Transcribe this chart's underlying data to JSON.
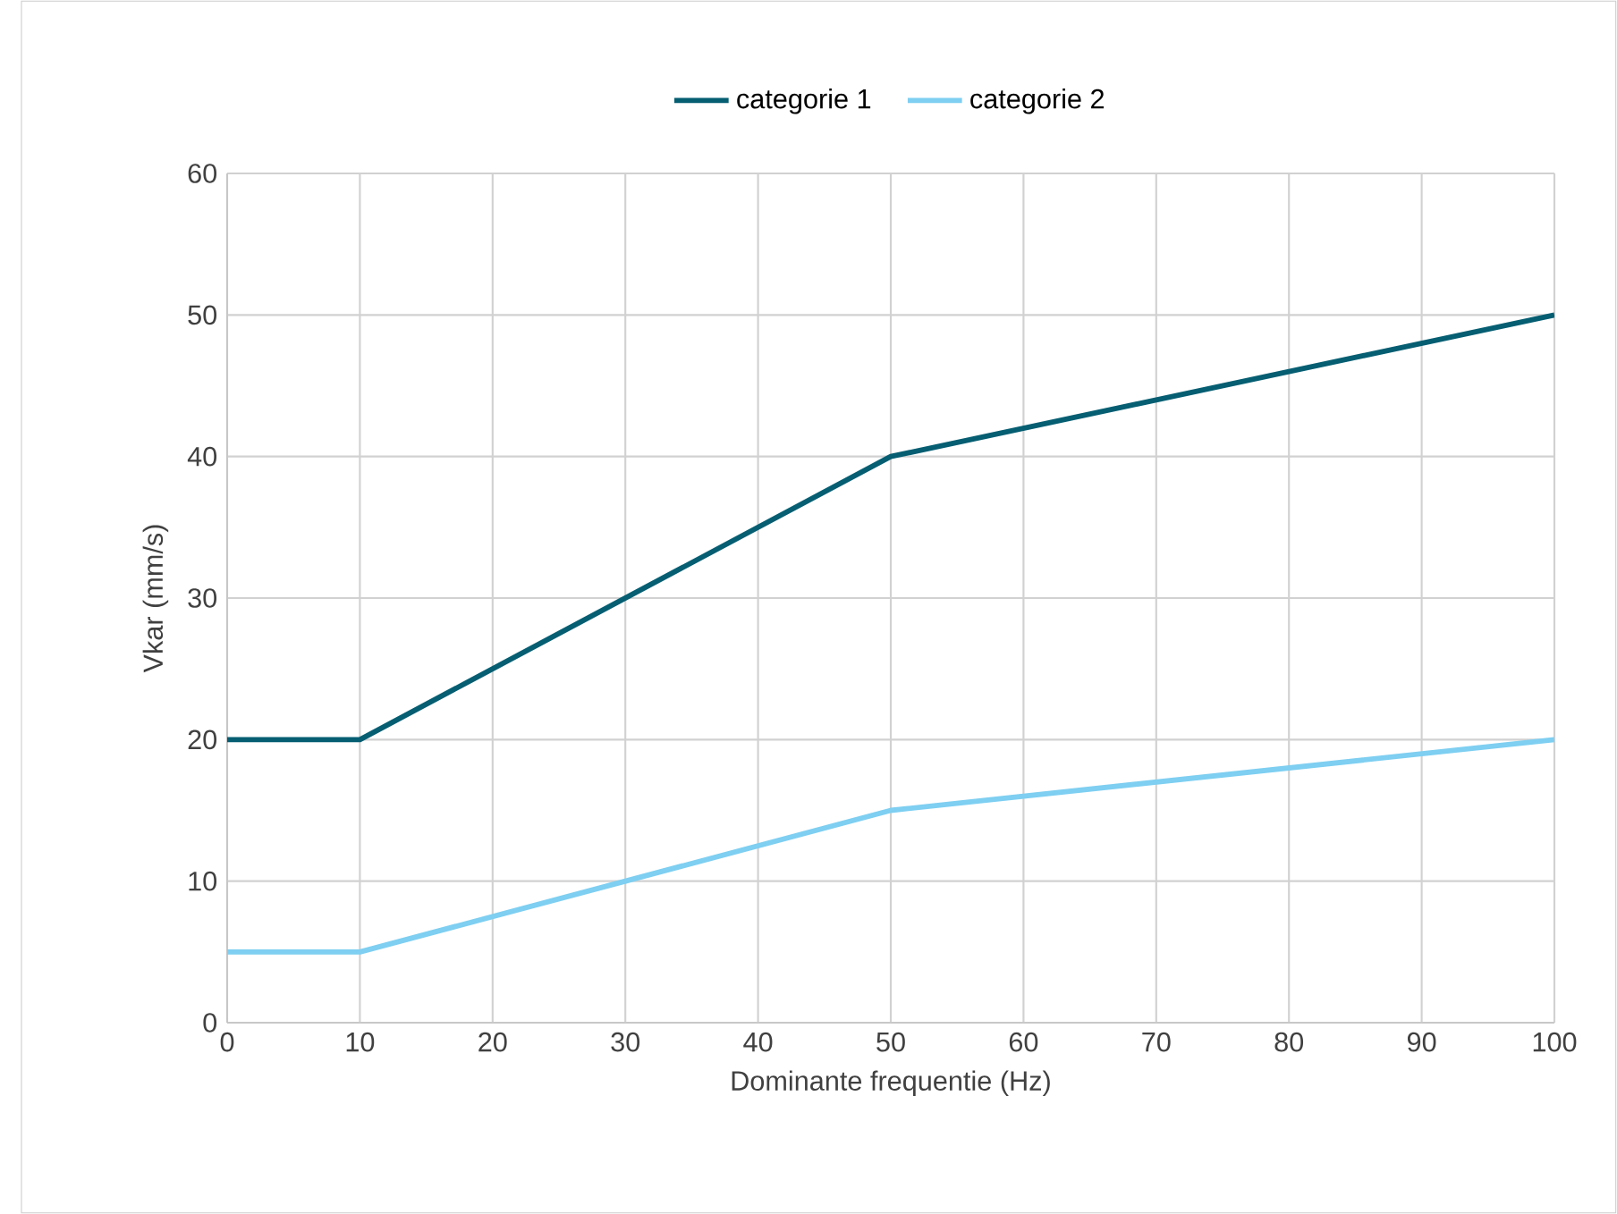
{
  "chart_data": {
    "type": "line",
    "xlabel": "Dominante frequentie (Hz)",
    "ylabel": "Vkar (mm/s)",
    "xlim": [
      0,
      100
    ],
    "ylim": [
      0,
      60
    ],
    "xticks": [
      0,
      10,
      20,
      30,
      40,
      50,
      60,
      70,
      80,
      90,
      100
    ],
    "yticks": [
      0,
      10,
      20,
      30,
      40,
      50,
      60
    ],
    "grid": true,
    "legend": "top",
    "marker": "none",
    "line_style": "solid",
    "series": [
      {
        "name": "categorie 1",
        "color": "#055e72",
        "x": [
          0,
          10,
          50,
          100
        ],
        "values": [
          20,
          20,
          40,
          50
        ]
      },
      {
        "name": "categorie 2",
        "color": "#7ecff1",
        "x": [
          0,
          10,
          50,
          100
        ],
        "values": [
          5,
          5,
          15,
          20
        ]
      }
    ]
  }
}
